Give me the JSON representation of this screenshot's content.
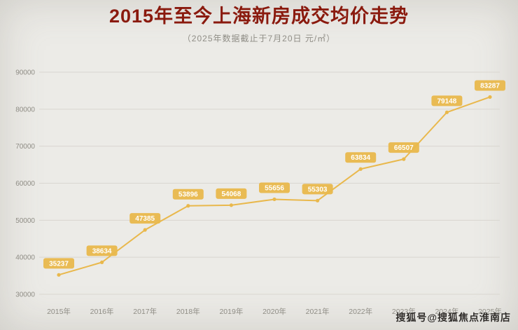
{
  "header": {
    "title": "2015年至今上海新房成交均价走势",
    "subtitle": "（2025年数据截止于7月20日  元/㎡）"
  },
  "chart_data": {
    "type": "line",
    "title": "2015年至今上海新房成交均价走势",
    "subtitle": "2025年数据截止于7月20日 元/㎡",
    "categories": [
      "2015年",
      "2016年",
      "2017年",
      "2018年",
      "2019年",
      "2020年",
      "2021年",
      "2022年",
      "2023年",
      "2024年",
      "2025年"
    ],
    "values": [
      35237,
      38634,
      47385,
      53896,
      54068,
      55656,
      55303,
      63834,
      66507,
      79148,
      83287
    ],
    "ylim": [
      30000,
      90000
    ],
    "yticks": [
      30000,
      40000,
      50000,
      60000,
      70000,
      80000,
      90000
    ],
    "grid": true,
    "legend": "none",
    "unit": "元/㎡",
    "line_color": "#e9b84c",
    "marker_color": "#e9b84c",
    "label_bg": "#e9b84c",
    "label_text_color": "#ffffff",
    "grid_color": "#d9d6d0",
    "axis_text_color": "#8f8d85"
  },
  "watermark": {
    "text": "搜狐号@搜狐焦点淮南店"
  }
}
